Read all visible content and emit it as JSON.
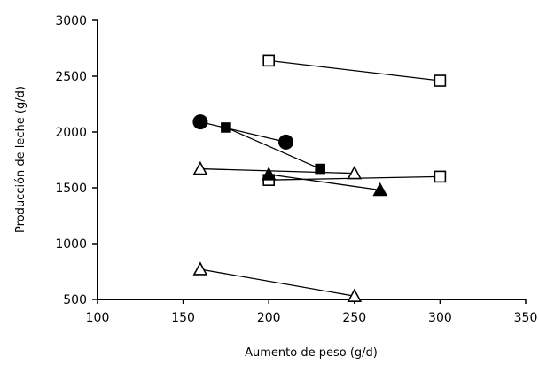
{
  "chart_data": {
    "type": "scatter",
    "xlabel": "Aumento de peso (g/d)",
    "ylabel": "Producción de leche (g/d)",
    "xlim": [
      100,
      350
    ],
    "ylim": [
      500,
      3000
    ],
    "xticks": [
      100,
      150,
      200,
      250,
      300,
      350
    ],
    "yticks": [
      500,
      1000,
      1500,
      2000,
      2500,
      3000
    ],
    "xtick_labels": [
      "100",
      "150",
      "200",
      "250",
      "300",
      "350"
    ],
    "ytick_labels": [
      "500",
      "1000",
      "1500",
      "2000",
      "2500",
      "3000"
    ],
    "grid": false,
    "series": [
      {
        "marker": "square-open",
        "points": [
          [
            200,
            2640
          ],
          [
            300,
            2460
          ]
        ]
      },
      {
        "marker": "square-open",
        "points": [
          [
            200,
            1570
          ],
          [
            300,
            1600
          ]
        ]
      },
      {
        "marker": "triangle-open",
        "points": [
          [
            160,
            1670
          ],
          [
            250,
            1630
          ]
        ]
      },
      {
        "marker": "triangle-open",
        "points": [
          [
            160,
            770
          ],
          [
            250,
            530
          ]
        ]
      },
      {
        "marker": "circle-filled",
        "points": [
          [
            160,
            2090
          ],
          [
            210,
            1910
          ]
        ]
      },
      {
        "marker": "square-filled",
        "points": [
          [
            175,
            2040
          ],
          [
            230,
            1670
          ]
        ]
      },
      {
        "marker": "triangle-filled",
        "points": [
          [
            200,
            1620
          ],
          [
            265,
            1480
          ]
        ]
      }
    ]
  }
}
